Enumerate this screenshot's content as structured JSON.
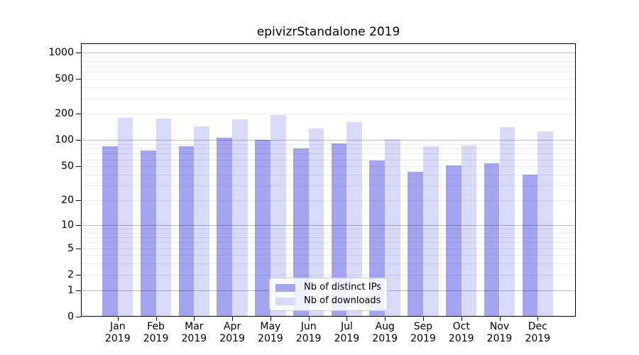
{
  "title": "epivizrStandalone 2019",
  "colors": {
    "ips_bar": "#a4a4f0",
    "downloads_bar": "#d9d9f8",
    "grid_major": "rgba(0,0,0,0.26)",
    "grid_minor": "rgba(0,0,0,0.07)",
    "axis": "#000000"
  },
  "legend": {
    "items": [
      {
        "label": "Nb of distinct IPs",
        "series": "ips"
      },
      {
        "label": "Nb of downloads",
        "series": "downloads"
      }
    ]
  },
  "y_axis": {
    "scale": "log10(value+1)",
    "tick_labels": [
      "0",
      "1",
      "2",
      "5",
      "10",
      "20",
      "50",
      "100",
      "200",
      "500",
      "1000"
    ],
    "tick_values": [
      0,
      1,
      2,
      5,
      10,
      20,
      50,
      100,
      200,
      500,
      1000
    ],
    "major_grid_values": [
      1,
      10,
      100,
      1000
    ],
    "minor_grid_values": [
      2,
      3,
      4,
      5,
      6,
      7,
      8,
      9,
      20,
      30,
      40,
      50,
      60,
      70,
      80,
      90,
      200,
      300,
      400,
      500,
      600,
      700,
      800,
      900
    ]
  },
  "x_axis": {
    "categories": [
      "Jan",
      "Feb",
      "Mar",
      "Apr",
      "May",
      "Jun",
      "Jul",
      "Aug",
      "Sep",
      "Oct",
      "Nov",
      "Dec"
    ],
    "year_label": "2019"
  },
  "chart_data": {
    "type": "bar",
    "title": "epivizrStandalone 2019",
    "categories": [
      "Jan 2019",
      "Feb 2019",
      "Mar 2019",
      "Apr 2019",
      "May 2019",
      "Jun 2019",
      "Jul 2019",
      "Aug 2019",
      "Sep 2019",
      "Oct 2019",
      "Nov 2019",
      "Dec 2019"
    ],
    "series": [
      {
        "name": "Nb of distinct IPs",
        "color": "#a4a4f0",
        "values": [
          85,
          76,
          85,
          107,
          100,
          81,
          92,
          59,
          43,
          51,
          54,
          40
        ]
      },
      {
        "name": "Nb of downloads",
        "color": "#d9d9f8",
        "values": [
          181,
          177,
          145,
          175,
          195,
          136,
          162,
          103,
          85,
          87,
          142,
          126
        ]
      }
    ],
    "yscale": "log1p",
    "ylim": [
      0,
      1270
    ],
    "grid": true,
    "legend_position": "lower center"
  }
}
